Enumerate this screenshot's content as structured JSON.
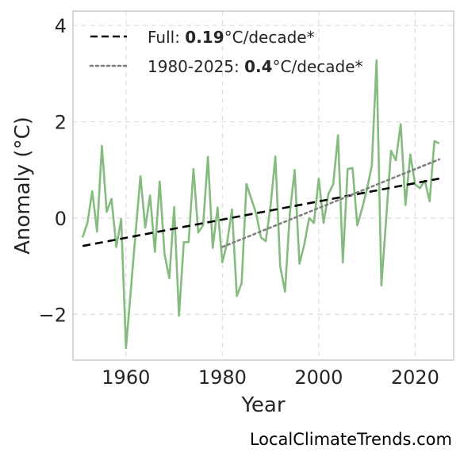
{
  "chart_data": {
    "type": "line",
    "xlabel": "Year",
    "ylabel": "Anomaly (°C)",
    "xlim": [
      1949,
      2028
    ],
    "ylim": [
      -2.95,
      4.3
    ],
    "x_ticks": [
      1960,
      1980,
      2000,
      2020
    ],
    "y_ticks": [
      -2,
      0,
      2,
      4
    ],
    "y_tick_labels": [
      "−2",
      "0",
      "2",
      "4"
    ],
    "grid": true,
    "legend_position": "top-left",
    "series": [
      {
        "style": "solid",
        "color": "#85bb7f",
        "x": [
          1951,
          1952,
          1953,
          1954,
          1955,
          1956,
          1957,
          1958,
          1959,
          1960,
          1961,
          1962,
          1963,
          1964,
          1965,
          1966,
          1967,
          1968,
          1969,
          1970,
          1971,
          1972,
          1973,
          1974,
          1975,
          1976,
          1977,
          1978,
          1979,
          1980,
          1981,
          1982,
          1983,
          1984,
          1985,
          1986,
          1987,
          1988,
          1989,
          1990,
          1991,
          1992,
          1993,
          1994,
          1995,
          1996,
          1997,
          1998,
          1999,
          2000,
          2001,
          2002,
          2003,
          2004,
          2005,
          2006,
          2007,
          2008,
          2009,
          2010,
          2011,
          2012,
          2013,
          2014,
          2015,
          2016,
          2017,
          2018,
          2019,
          2020,
          2021,
          2022,
          2023,
          2024,
          2025
        ],
        "values": [
          -0.4,
          -0.1,
          0.56,
          -0.28,
          1.5,
          0.13,
          0.4,
          -0.6,
          -0.02,
          -2.7,
          -1.5,
          -0.3,
          0.87,
          -0.2,
          0.47,
          -0.7,
          0.76,
          -0.75,
          -1.25,
          0.23,
          -2.03,
          -0.5,
          -0.5,
          1.02,
          -0.3,
          -0.15,
          1.27,
          -0.62,
          0.22,
          -0.92,
          -0.5,
          0.18,
          -1.62,
          -1.35,
          0.71,
          0.4,
          0.1,
          -0.4,
          -0.48,
          0.25,
          1.28,
          -1.0,
          -1.53,
          0.1,
          1.0,
          -0.95,
          -0.55,
          0.0,
          -0.1,
          0.82,
          -0.1,
          0.5,
          0.7,
          1.72,
          -0.92,
          1.02,
          1.04,
          -0.15,
          0.2,
          0.6,
          1.08,
          3.28,
          -1.4,
          0.0,
          1.4,
          1.2,
          1.95,
          0.27,
          1.32,
          0.7,
          0.62,
          0.78,
          0.35,
          1.6,
          1.55
        ]
      },
      {
        "name": "Full",
        "style": "dashed",
        "color": "#000000",
        "x": [
          1951,
          2025
        ],
        "values": [
          -0.58,
          0.82
        ]
      },
      {
        "name": "1980-2025",
        "style": "dotted",
        "color": "#7f7f7f",
        "x": [
          1980,
          2025
        ],
        "values": [
          -0.6,
          1.22
        ]
      }
    ],
    "legend": [
      {
        "prefix": "Full: ",
        "bold": "0.19",
        "suffix": "°C/decade*",
        "style": "dashed",
        "color": "#000000"
      },
      {
        "prefix": "1980-2025: ",
        "bold": "0.4",
        "suffix": "°C/decade*",
        "style": "dotted",
        "color": "#7f7f7f"
      }
    ]
  },
  "watermark": "LocalClimateTrends.com"
}
